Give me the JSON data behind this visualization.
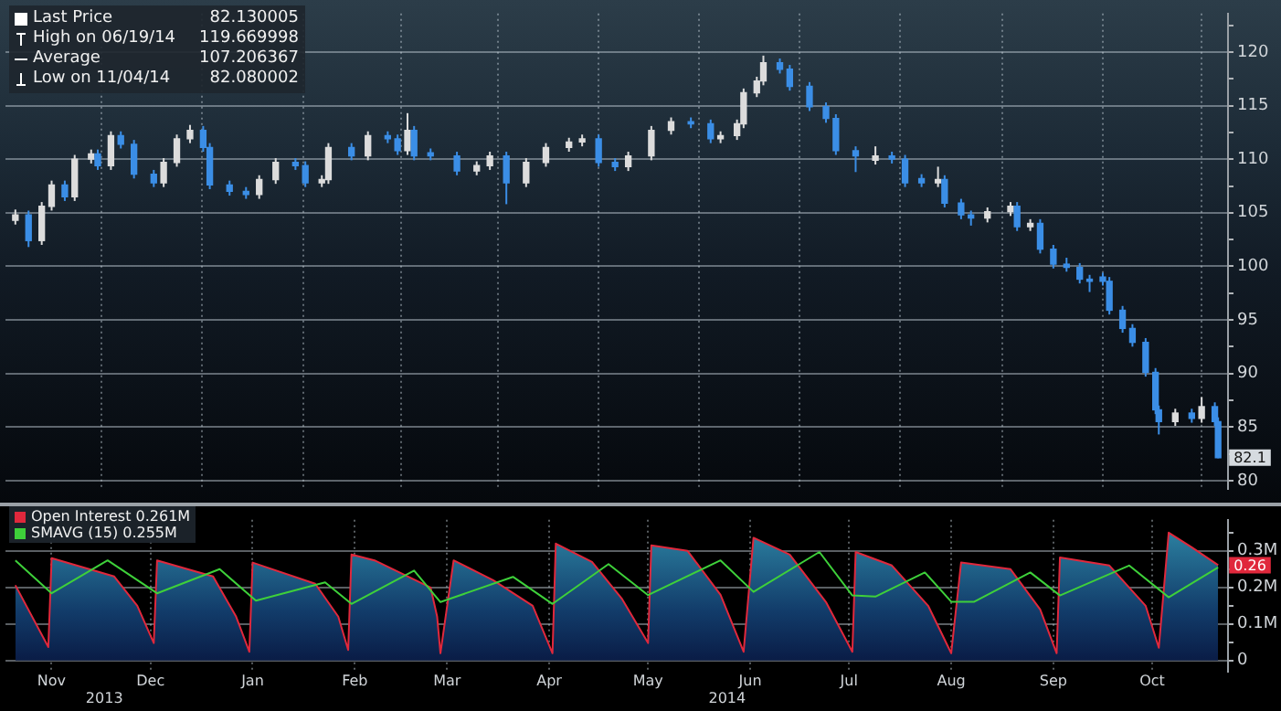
{
  "chart_data": [
    {
      "type": "candlestick",
      "x": [
        "2013-11-04",
        "2013-11-08",
        "2013-11-12",
        "2013-11-15",
        "2013-11-19",
        "2013-11-22",
        "2013-11-27",
        "2013-11-29",
        "2013-12-03",
        "2013-12-06",
        "2013-12-10",
        "2013-12-16",
        "2013-12-19",
        "2013-12-23",
        "2013-12-27",
        "2013-12-31",
        "2014-01-02",
        "2014-01-08",
        "2014-01-13",
        "2014-01-17",
        "2014-01-22",
        "2014-01-28",
        "2014-01-31",
        "2014-02-05",
        "2014-02-07",
        "2014-02-14",
        "2014-02-19",
        "2014-02-25",
        "2014-02-28",
        "2014-03-03",
        "2014-03-05",
        "2014-03-10",
        "2014-03-18",
        "2014-03-24",
        "2014-03-28",
        "2014-04-02",
        "2014-04-08",
        "2014-04-14",
        "2014-04-21",
        "2014-04-25",
        "2014-04-30",
        "2014-05-05",
        "2014-05-09",
        "2014-05-16",
        "2014-05-22",
        "2014-05-28",
        "2014-06-03",
        "2014-06-06",
        "2014-06-11",
        "2014-06-13",
        "2014-06-17",
        "2014-06-19",
        "2014-06-24",
        "2014-06-27",
        "2014-07-03",
        "2014-07-08",
        "2014-07-11",
        "2014-07-17",
        "2014-07-23",
        "2014-07-28",
        "2014-08-01",
        "2014-08-06",
        "2014-08-11",
        "2014-08-13",
        "2014-08-18",
        "2014-08-21",
        "2014-08-26",
        "2014-09-02",
        "2014-09-04",
        "2014-09-08",
        "2014-09-11",
        "2014-09-15",
        "2014-09-19",
        "2014-09-23",
        "2014-09-26",
        "2014-09-30",
        "2014-10-02",
        "2014-10-06",
        "2014-10-09",
        "2014-10-13",
        "2014-10-16",
        "2014-10-17",
        "2014-10-22",
        "2014-10-27",
        "2014-10-30",
        "2014-11-03",
        "2014-11-04"
      ],
      "ohlc": [
        [
          104.3,
          105.3,
          103.9,
          104.8
        ],
        [
          104.8,
          105.2,
          101.8,
          102.4
        ],
        [
          102.4,
          106.0,
          102.0,
          105.6
        ],
        [
          105.6,
          108.0,
          105.2,
          107.6
        ],
        [
          107.6,
          108.0,
          106.1,
          106.5
        ],
        [
          106.5,
          110.4,
          106.1,
          110.0
        ],
        [
          110.0,
          110.9,
          109.6,
          110.5
        ],
        [
          110.5,
          110.9,
          109.0,
          109.4
        ],
        [
          109.4,
          112.6,
          109.0,
          112.2
        ],
        [
          112.2,
          112.6,
          111.0,
          111.4
        ],
        [
          111.4,
          111.8,
          108.2,
          108.6
        ],
        [
          108.6,
          109.0,
          107.4,
          107.8
        ],
        [
          107.8,
          110.1,
          107.4,
          109.7
        ],
        [
          109.7,
          112.3,
          109.3,
          111.9
        ],
        [
          111.9,
          113.2,
          111.5,
          112.7
        ],
        [
          112.7,
          113.1,
          110.7,
          111.1
        ],
        [
          111.1,
          111.5,
          107.2,
          107.6
        ],
        [
          107.6,
          108.0,
          106.6,
          107.0
        ],
        [
          107.0,
          107.4,
          106.3,
          106.7
        ],
        [
          106.7,
          108.5,
          106.3,
          108.1
        ],
        [
          108.1,
          110.1,
          107.7,
          109.7
        ],
        [
          109.7,
          110.1,
          109.0,
          109.4
        ],
        [
          109.4,
          109.8,
          107.4,
          107.8
        ],
        [
          107.8,
          108.5,
          107.4,
          108.1
        ],
        [
          108.1,
          111.5,
          107.7,
          111.1
        ],
        [
          111.1,
          111.5,
          109.9,
          110.3
        ],
        [
          110.3,
          112.6,
          109.9,
          112.2
        ],
        [
          112.2,
          112.6,
          111.5,
          111.9
        ],
        [
          111.9,
          112.3,
          110.4,
          110.8
        ],
        [
          110.8,
          114.3,
          110.4,
          112.7
        ],
        [
          112.7,
          113.1,
          109.9,
          110.3
        ],
        [
          110.6,
          111.0,
          109.9,
          110.3
        ],
        [
          110.3,
          110.7,
          108.5,
          108.9
        ],
        [
          108.9,
          109.8,
          108.5,
          109.4
        ],
        [
          109.4,
          110.7,
          109.0,
          110.3
        ],
        [
          110.3,
          110.7,
          105.8,
          107.8
        ],
        [
          107.8,
          110.1,
          107.4,
          109.7
        ],
        [
          109.7,
          111.5,
          109.3,
          111.1
        ],
        [
          111.1,
          112.0,
          110.7,
          111.6
        ],
        [
          111.6,
          112.3,
          111.2,
          111.9
        ],
        [
          111.9,
          112.3,
          109.3,
          109.7
        ],
        [
          109.7,
          110.1,
          108.9,
          109.3
        ],
        [
          109.3,
          110.7,
          108.9,
          110.3
        ],
        [
          110.3,
          113.1,
          109.9,
          112.7
        ],
        [
          112.7,
          113.9,
          112.3,
          113.5
        ],
        [
          113.5,
          113.9,
          112.9,
          113.3
        ],
        [
          113.3,
          113.7,
          111.5,
          111.9
        ],
        [
          111.9,
          112.6,
          111.5,
          112.2
        ],
        [
          112.2,
          113.7,
          111.8,
          113.3
        ],
        [
          113.3,
          116.6,
          112.9,
          116.2
        ],
        [
          116.2,
          117.7,
          115.8,
          117.3
        ],
        [
          117.3,
          119.67,
          116.9,
          119.0
        ],
        [
          119.0,
          119.4,
          118.0,
          118.4
        ],
        [
          118.4,
          118.8,
          116.4,
          116.8
        ],
        [
          116.8,
          117.2,
          114.5,
          114.9
        ],
        [
          114.9,
          115.3,
          113.4,
          113.8
        ],
        [
          113.8,
          114.2,
          110.4,
          110.8
        ],
        [
          110.8,
          111.2,
          108.8,
          110.3
        ],
        [
          109.9,
          111.2,
          109.5,
          110.3
        ],
        [
          110.3,
          110.7,
          109.6,
          110.0
        ],
        [
          110.0,
          110.4,
          107.4,
          107.8
        ],
        [
          108.2,
          108.6,
          107.4,
          107.8
        ],
        [
          107.8,
          109.3,
          107.4,
          108.1
        ],
        [
          108.1,
          108.5,
          105.5,
          105.9
        ],
        [
          105.9,
          106.3,
          104.4,
          104.8
        ],
        [
          104.8,
          105.2,
          103.8,
          104.5
        ],
        [
          104.5,
          105.5,
          104.1,
          105.1
        ],
        [
          105.1,
          106.0,
          104.7,
          105.6
        ],
        [
          105.6,
          106.0,
          103.3,
          103.7
        ],
        [
          103.7,
          104.4,
          103.3,
          104.0
        ],
        [
          104.0,
          104.4,
          101.2,
          101.6
        ],
        [
          101.6,
          102.0,
          99.8,
          100.2
        ],
        [
          100.2,
          100.8,
          99.5,
          99.9
        ],
        [
          99.9,
          100.3,
          98.4,
          98.8
        ],
        [
          98.8,
          99.2,
          97.6,
          98.6
        ],
        [
          99.0,
          99.4,
          98.2,
          98.6
        ],
        [
          98.6,
          99.0,
          95.5,
          95.9
        ],
        [
          95.9,
          96.3,
          93.8,
          94.2
        ],
        [
          94.2,
          94.6,
          92.5,
          92.9
        ],
        [
          92.9,
          93.3,
          89.7,
          90.1
        ],
        [
          90.1,
          90.5,
          86.2,
          86.6
        ],
        [
          86.6,
          87.0,
          84.3,
          85.5
        ],
        [
          85.5,
          86.7,
          85.1,
          86.3
        ],
        [
          86.3,
          86.7,
          85.4,
          85.8
        ],
        [
          85.8,
          87.8,
          85.4,
          86.9
        ],
        [
          86.9,
          87.3,
          85.1,
          85.5
        ],
        [
          85.5,
          85.9,
          82.08,
          82.13
        ]
      ],
      "xlim": [
        "2013-11-01",
        "2014-11-07"
      ],
      "xticks": [
        {
          "value": "2013-11-15",
          "label": null
        },
        {
          "value": "2013-12-15",
          "label": null
        },
        {
          "value": "2014-01-15",
          "label": null
        },
        {
          "value": "2014-02-15",
          "label": null
        },
        {
          "value": "2014-03-15",
          "label": null
        },
        {
          "value": "2014-04-15",
          "label": null
        },
        {
          "value": "2014-05-15",
          "label": null
        },
        {
          "value": "2014-06-15",
          "label": null
        },
        {
          "value": "2014-07-15",
          "label": null
        },
        {
          "value": "2014-08-15",
          "label": null
        },
        {
          "value": "2014-09-15",
          "label": null
        },
        {
          "value": "2014-10-15",
          "label": null
        }
      ],
      "ylim": [
        79.2,
        123.6
      ],
      "yticks": [
        80,
        {
          "value": 82.5,
          "label": null
        },
        85,
        {
          "value": 87.5,
          "label": null
        },
        90,
        {
          "value": 92.5,
          "label": null
        },
        95,
        {
          "value": 97.5,
          "label": null
        },
        100,
        {
          "value": 102.5,
          "label": null
        },
        105,
        {
          "value": 107.5,
          "label": null
        },
        110,
        {
          "value": 112.5,
          "label": null
        },
        115,
        {
          "value": 117.5,
          "label": null
        },
        120,
        {
          "value": 122.5,
          "label": null
        }
      ],
      "grid": true,
      "tick_labels": "y",
      "annotations": [
        "Last Price",
        "82.130005",
        "High on 06/19/14",
        "119.669998",
        "Average",
        "107.206367",
        "Low on 11/04/14",
        "82.080002",
        {
          "text": "82.1",
          "x": "2014-11-04",
          "y": 82.13
        }
      ]
    },
    {
      "type": "area",
      "series": [
        {
          "name": "Open Interest 0.261M",
          "color": "#e0283c",
          "x": [
            "2013-11-04",
            "2013-11-14",
            "2013-11-15",
            "2013-12-04",
            "2013-12-11",
            "2013-12-16",
            "2013-12-17",
            "2014-01-03",
            "2014-01-10",
            "2014-01-14",
            "2014-01-15",
            "2014-02-03",
            "2014-02-10",
            "2014-02-13",
            "2014-02-14",
            "2014-02-21",
            "2014-03-10",
            "2014-03-12",
            "2014-03-13",
            "2014-03-17",
            "2014-03-29",
            "2014-04-10",
            "2014-04-16",
            "2014-04-17",
            "2014-04-28",
            "2014-05-07",
            "2014-05-15",
            "2014-05-16",
            "2014-05-27",
            "2014-06-06",
            "2014-06-13",
            "2014-06-16",
            "2014-06-27",
            "2014-07-08",
            "2014-07-16",
            "2014-07-17",
            "2014-07-28",
            "2014-08-08",
            "2014-08-15",
            "2014-08-18",
            "2014-09-02",
            "2014-09-11",
            "2014-09-16",
            "2014-09-17",
            "2014-10-02",
            "2014-10-13",
            "2014-10-17",
            "2014-10-20",
            "2014-10-27",
            "2014-11-04"
          ],
          "values": [
            0.206,
            0.037,
            0.28,
            0.23,
            0.15,
            0.048,
            0.274,
            0.23,
            0.12,
            0.024,
            0.268,
            0.21,
            0.12,
            0.029,
            0.29,
            0.274,
            0.2,
            0.12,
            0.02,
            0.274,
            0.22,
            0.15,
            0.02,
            0.32,
            0.27,
            0.17,
            0.048,
            0.315,
            0.3,
            0.18,
            0.024,
            0.336,
            0.29,
            0.16,
            0.024,
            0.297,
            0.26,
            0.15,
            0.02,
            0.268,
            0.25,
            0.14,
            0.02,
            0.282,
            0.26,
            0.15,
            0.035,
            0.35,
            0.31,
            0.261
          ]
        },
        {
          "name": "SMAVG (15) 0.255M",
          "type": "line",
          "color": "#3ed03a",
          "x": [
            "2013-11-04",
            "2013-11-15",
            "2013-12-02",
            "2013-12-17",
            "2014-01-05",
            "2014-01-16",
            "2014-02-06",
            "2014-02-14",
            "2014-03-05",
            "2014-03-13",
            "2014-04-04",
            "2014-04-16",
            "2014-05-03",
            "2014-05-15",
            "2014-06-06",
            "2014-06-16",
            "2014-07-06",
            "2014-07-16",
            "2014-07-23",
            "2014-08-07",
            "2014-08-15",
            "2014-08-22",
            "2014-09-08",
            "2014-09-17",
            "2014-10-08",
            "2014-10-20",
            "2014-11-04"
          ],
          "values": [
            0.274,
            0.184,
            0.274,
            0.184,
            0.25,
            0.164,
            0.214,
            0.155,
            0.246,
            0.16,
            0.229,
            0.155,
            0.264,
            0.179,
            0.274,
            0.188,
            0.297,
            0.178,
            0.175,
            0.241,
            0.161,
            0.161,
            0.241,
            0.178,
            0.26,
            0.173,
            0.255
          ]
        }
      ],
      "xlim": [
        "2013-11-01",
        "2014-11-07"
      ],
      "xticks": [
        {
          "value": "2013-11-15",
          "label": "Nov"
        },
        {
          "value": "2013-12-15",
          "label": "Dec"
        },
        {
          "value": "2014-01-15",
          "label": "Jan"
        },
        {
          "value": "2014-02-15",
          "label": "Feb"
        },
        {
          "value": "2014-03-15",
          "label": "Mar"
        },
        {
          "value": "2014-04-15",
          "label": "Apr"
        },
        {
          "value": "2014-05-15",
          "label": "May"
        },
        {
          "value": "2014-06-15",
          "label": "Jun"
        },
        {
          "value": "2014-07-15",
          "label": "Jul"
        },
        {
          "value": "2014-08-15",
          "label": "Aug"
        },
        {
          "value": "2014-09-15",
          "label": "Sep"
        },
        {
          "value": "2014-10-15",
          "label": "Oct"
        }
      ],
      "x2lim": [
        "2013-11-01",
        "2014-11-07"
      ],
      "x2ticks": [
        {
          "value": "2013-12-01",
          "label": "2013"
        },
        {
          "value": "2014-06-08",
          "label": "2014"
        }
      ],
      "ylim": [
        -0.03,
        0.385
      ],
      "yticks": [
        0,
        {
          "value": 0.05,
          "label": null
        },
        {
          "value": 0.1,
          "label": "0.1M"
        },
        {
          "value": 0.15,
          "label": null
        },
        {
          "value": 0.2,
          "label": "0.2M"
        },
        {
          "value": 0.25,
          "label": null
        },
        {
          "value": 0.3,
          "label": "0.3M"
        },
        {
          "value": 0.35,
          "label": null
        }
      ],
      "grid": true,
      "legend": "top left",
      "annotations": [
        {
          "text": "0.26",
          "x": "2014-11-04",
          "y": 0.261
        }
      ]
    }
  ]
}
